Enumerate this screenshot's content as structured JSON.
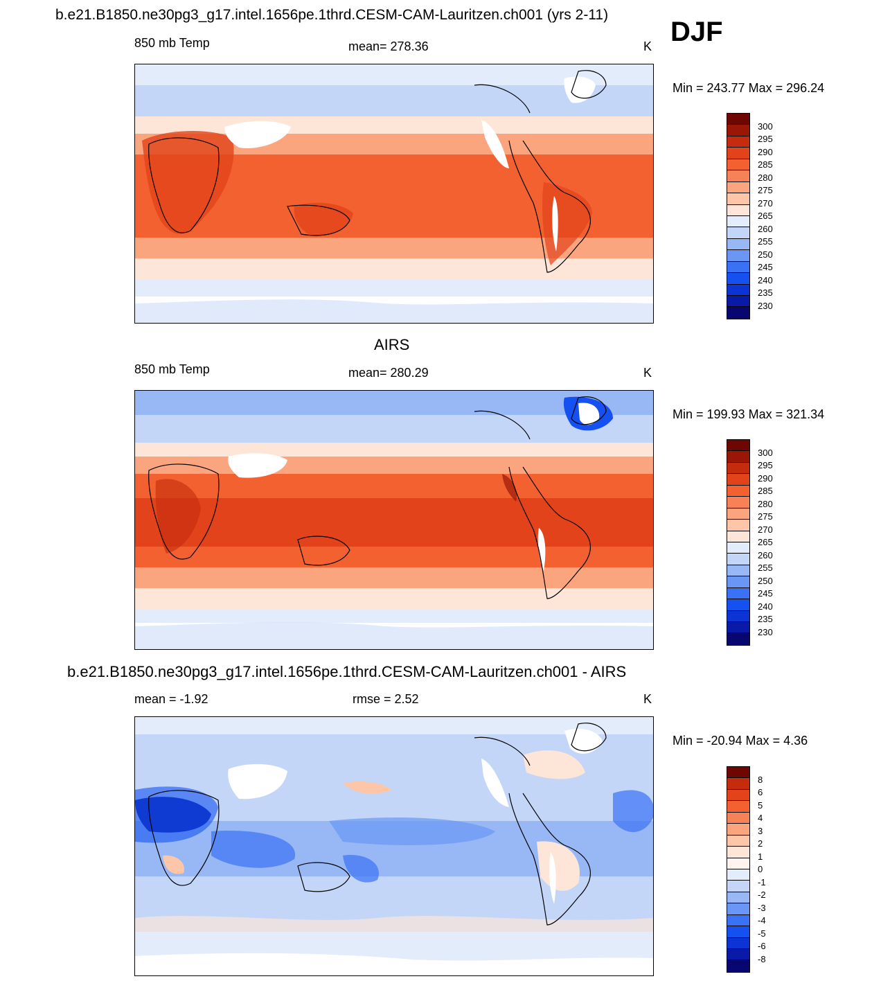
{
  "header": {
    "title": "b.e21.B1850.ne30pg3_g17.intel.1656pe.1thrd.CESM-CAM-Lauritzen.ch001 (yrs 2-11)",
    "season": "DJF"
  },
  "colors": {
    "temp_scale": [
      "#08066f",
      "#0a1aa8",
      "#0c34d4",
      "#1451f0",
      "#3a72f5",
      "#6a97f5",
      "#98b8f5",
      "#c3d6f7",
      "#e3ecfa",
      "#fde6d8",
      "#fdc6a8",
      "#fba57f",
      "#f88258",
      "#f2612f",
      "#e2431a",
      "#c52c0d",
      "#9b1705",
      "#6e0701"
    ],
    "diff_scale": [
      "#08066f",
      "#0a1aa8",
      "#0c34d4",
      "#1451f0",
      "#3a72f5",
      "#6a97f5",
      "#98b8f5",
      "#c3d6f7",
      "#e3ecfa",
      "#fff5ee",
      "#fde6d8",
      "#fdc6a8",
      "#fba57f",
      "#f88258",
      "#f2612f",
      "#e2431a",
      "#c52c0d",
      "#6e0701"
    ]
  },
  "chart_data": [
    {
      "type": "heatmap",
      "title": "",
      "left_label": "850 mb Temp",
      "center_label": "mean= 278.36",
      "units": "K",
      "minmax": "Min = 243.77 Max = 296.24",
      "contour_levels": [
        "300",
        "295",
        "290",
        "285",
        "280",
        "275",
        "270",
        "265",
        "260",
        "255",
        "250",
        "245",
        "240",
        "235",
        "230"
      ]
    },
    {
      "type": "heatmap",
      "title": "AIRS",
      "left_label": "850 mb Temp",
      "center_label": "mean= 280.29",
      "units": "K",
      "minmax": "Min = 199.93 Max = 321.34",
      "contour_levels": [
        "300",
        "295",
        "290",
        "285",
        "280",
        "275",
        "270",
        "265",
        "260",
        "255",
        "250",
        "245",
        "240",
        "235",
        "230"
      ]
    },
    {
      "type": "heatmap",
      "title": "b.e21.B1850.ne30pg3_g17.intel.1656pe.1thrd.CESM-CAM-Lauritzen.ch001 - AIRS",
      "left_label": "mean =  -1.92",
      "center_label": "rmse =   2.52",
      "units": "K",
      "minmax": "Min = -20.94 Max =   4.36",
      "contour_levels": [
        "8",
        "6",
        "5",
        "4",
        "3",
        "2",
        "1",
        "0",
        "-1",
        "-2",
        "-3",
        "-4",
        "-5",
        "-6",
        "-8"
      ]
    }
  ]
}
